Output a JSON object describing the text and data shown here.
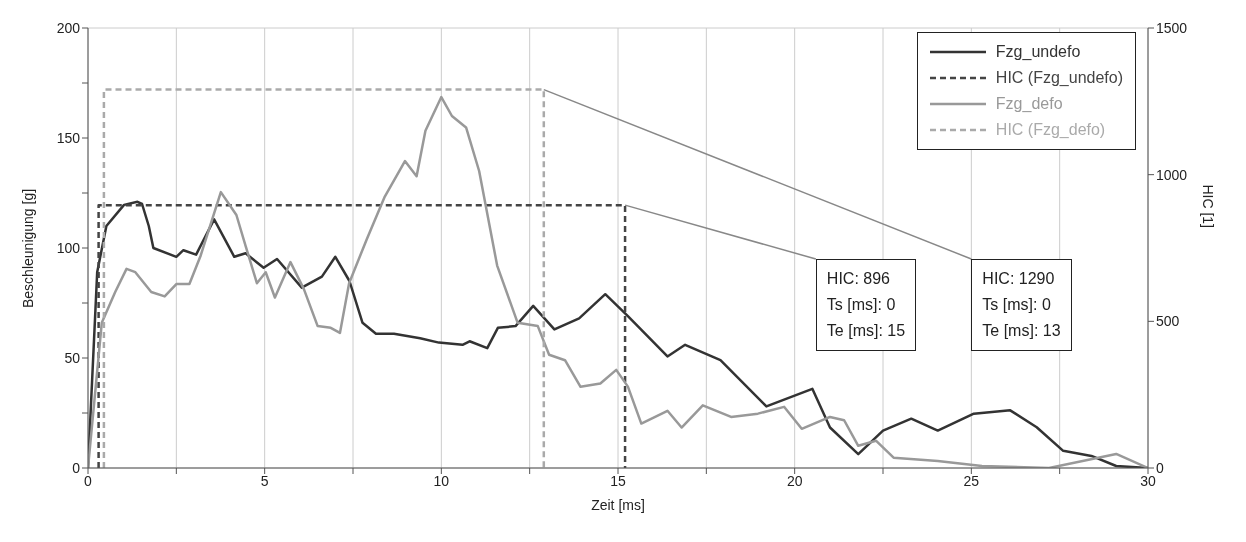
{
  "chart_data": {
    "type": "line",
    "xlabel": "Zeit [ms]",
    "ylabel": "Beschleunigung [g]",
    "y2label": "HIC [1]",
    "xlim": [
      0,
      30
    ],
    "xticks": [
      0,
      {
        "value": 2.5,
        "label": null
      },
      5,
      {
        "value": 7.5,
        "label": null
      },
      10,
      {
        "value": 12.5,
        "label": null
      },
      15,
      {
        "value": 17.5,
        "label": null
      },
      20,
      {
        "value": 22.5,
        "label": null
      },
      25,
      {
        "value": 27.5,
        "label": null
      },
      30
    ],
    "ylim": [
      0,
      200
    ],
    "yticks": [
      0,
      {
        "value": 25,
        "label": null
      },
      50,
      {
        "value": 75,
        "label": null
      },
      100,
      {
        "value": 125,
        "label": null
      },
      150,
      {
        "value": 175,
        "label": null
      },
      200
    ],
    "y2lim": [
      0,
      1500
    ],
    "y2ticks": [
      0,
      500,
      1000,
      1500
    ],
    "grid": true,
    "legend": "top right",
    "marker": "none",
    "series": [
      {
        "name": "Fzg_undefo",
        "color": "#333333",
        "line_style": "solid",
        "x": [
          0,
          0.26,
          0.52,
          1.02,
          1.4,
          1.53,
          1.72,
          1.85,
          2.5,
          2.7,
          3.06,
          3.57,
          4.14,
          4.46,
          4.97,
          5.35,
          6.05,
          6.62,
          7.0,
          7.4,
          7.77,
          8.15,
          8.66,
          9.4,
          9.93,
          10.6,
          10.8,
          11.3,
          11.6,
          12.1,
          12.6,
          13.2,
          13.9,
          14.64,
          15.28,
          16.4,
          16.9,
          17.9,
          19.2,
          20.5,
          21.0,
          21.8,
          22.5,
          23.3,
          24.05,
          25.07,
          26.1,
          26.85,
          27.6,
          28.4,
          29.1,
          30
        ],
        "values": [
          0,
          89,
          110,
          119.6,
          121,
          120,
          110,
          100,
          96,
          99,
          97,
          113,
          96,
          97.6,
          91,
          95,
          82,
          87,
          96,
          85,
          66,
          61,
          61,
          59,
          57,
          56,
          57.6,
          54.5,
          63.7,
          64.5,
          73.7,
          63,
          68,
          79,
          69,
          50.7,
          56,
          49,
          28,
          36,
          18.4,
          6.3,
          17,
          22.4,
          17,
          24.7,
          26.2,
          18.5,
          7.8,
          5.5,
          0.9,
          0
        ]
      },
      {
        "name": "HIC (Fzg_undefo)",
        "color": "#444444",
        "line_style": "dashed",
        "axis": "y2",
        "x": [
          0.3,
          0.3,
          15.2,
          15.2
        ],
        "values": [
          0,
          896,
          896,
          0
        ]
      },
      {
        "name": "Fzg_defo",
        "color": "#999999",
        "line_style": "solid",
        "x": [
          0,
          0.39,
          0.77,
          1.09,
          1.34,
          1.79,
          2.17,
          2.5,
          2.87,
          3.19,
          3.76,
          4.2,
          4.46,
          4.78,
          5.03,
          5.29,
          5.73,
          6.11,
          6.5,
          6.87,
          7.13,
          7.39,
          7.89,
          8.4,
          8.97,
          9.3,
          9.55,
          10.0,
          10.3,
          10.7,
          11.07,
          11.58,
          12.16,
          12.73,
          13.05,
          13.5,
          13.94,
          14.5,
          14.95,
          15.28,
          15.66,
          16.4,
          16.8,
          17.4,
          18.2,
          18.96,
          19.7,
          20.2,
          21.0,
          21.4,
          21.8,
          22.3,
          22.8,
          24.05,
          25.3,
          27.2,
          29.1,
          30
        ],
        "values": [
          0,
          66,
          80,
          90.5,
          89,
          80,
          78,
          83.6,
          83.6,
          96.6,
          125.4,
          115,
          101,
          84,
          89,
          77.5,
          93.6,
          81.3,
          64.5,
          63.7,
          61.4,
          84,
          104,
          123.4,
          139.5,
          132.6,
          153.3,
          168.6,
          160,
          154.8,
          135,
          92,
          66,
          64.5,
          51.5,
          49,
          36.9,
          38.4,
          44.6,
          37,
          20.2,
          26,
          18.4,
          28.5,
          23.2,
          24.7,
          27.8,
          17.8,
          23.2,
          21.7,
          10.1,
          12.4,
          4.7,
          3.2,
          0.9,
          0,
          6.4,
          0
        ]
      },
      {
        "name": "HIC (Fzg_defo)",
        "color": "#aaaaaa",
        "line_style": "dashed",
        "axis": "y2",
        "x": [
          0.45,
          0.45,
          12.9,
          12.9
        ],
        "values": [
          0,
          1290,
          1290,
          0
        ]
      }
    ],
    "annotations": [
      {
        "text": "HIC: 896\nTs [ms]: 0\nTe [ms]: 15",
        "x": 15.2,
        "y": 119.5
      },
      {
        "text": "HIC: 1290\nTs [ms]: 0\nTe [ms]: 13",
        "x": 12.9,
        "y": 172
      }
    ]
  }
}
